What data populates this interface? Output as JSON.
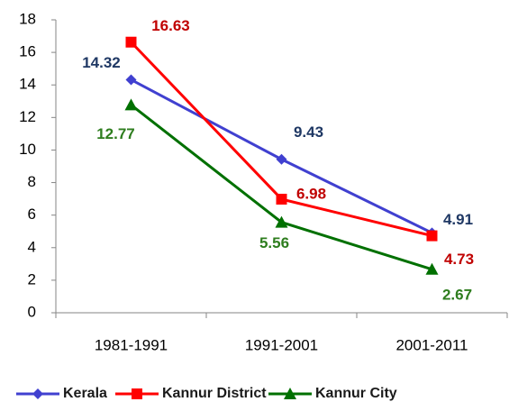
{
  "chart_data": {
    "type": "line",
    "categories": [
      "1981-1991",
      "1991-2001",
      "2001-2011"
    ],
    "series": [
      {
        "name": "Kerala",
        "color": "#4040d0",
        "label_color": "#1f3864",
        "marker": "diamond",
        "values": [
          14.32,
          9.43,
          4.91
        ]
      },
      {
        "name": "Kannur District",
        "color": "#ff0000",
        "label_color": "#c00000",
        "marker": "square",
        "values": [
          16.63,
          6.98,
          4.73
        ]
      },
      {
        "name": "Kannur City",
        "color": "#007000",
        "label_color": "#2e7d1e",
        "marker": "triangle",
        "values": [
          12.77,
          5.56,
          2.67
        ]
      }
    ],
    "ylim": [
      0,
      18
    ],
    "yticks": [
      0,
      2,
      4,
      6,
      8,
      10,
      12,
      14,
      16,
      18
    ],
    "grid": false,
    "legend": "bottom"
  }
}
